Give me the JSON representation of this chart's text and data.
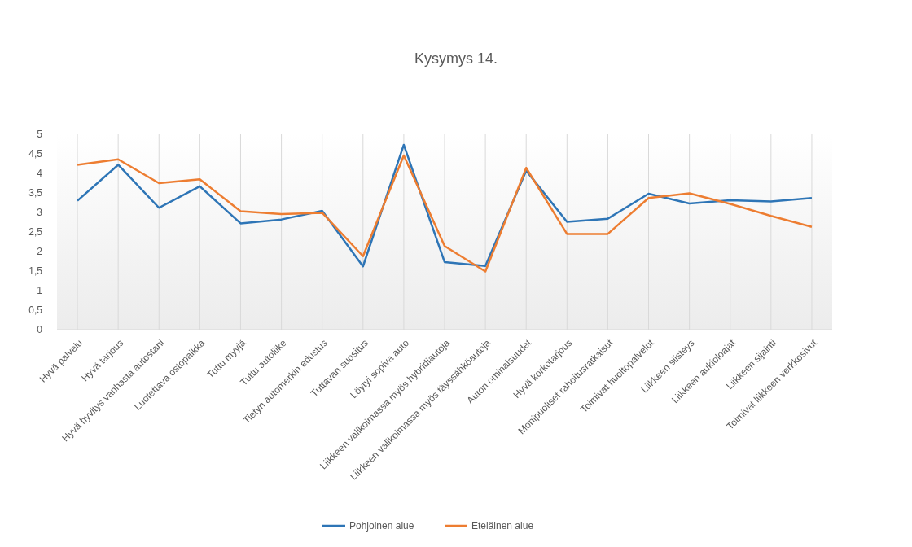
{
  "chart_data": {
    "type": "line",
    "title": "Kysymys 14.",
    "categories": [
      "Hyvä palvelu",
      "Hyvä tarjous",
      "Hyvä hyvitys vanhasta autostani",
      "Luotettava ostopaikka",
      "Tuttu myyjä",
      "Tuttu autoliike",
      "Tietyn automerkin edustus",
      "Tuttavan suositus",
      "Löytyi sopiva auto",
      "Liikkeen valikoimassa myös hybridiautoja",
      "Liikkeen valikoimassa myös täyssähköautoja",
      "Auton ominaisuudet",
      "Hyvä korkotarjous",
      "Monipuoliset rahoitusratkaisut",
      "Toimivat huoltopalvelut",
      "Liikkeen siisteys",
      "Liikkeen aukioloajat",
      "Liikkeen sijainti",
      "Toimivat liikkeen verkkosivut"
    ],
    "series": [
      {
        "name": "Pohjoinen alue",
        "color": "#2e75b6",
        "values": [
          3.3,
          4.22,
          3.12,
          3.67,
          2.72,
          2.82,
          3.04,
          1.62,
          4.73,
          1.73,
          1.63,
          4.07,
          2.76,
          2.84,
          3.48,
          3.23,
          3.31,
          3.28,
          3.37
        ]
      },
      {
        "name": "Eteläinen alue",
        "color": "#ed7d31",
        "values": [
          4.22,
          4.36,
          3.75,
          3.85,
          3.03,
          2.96,
          2.99,
          1.88,
          4.46,
          2.14,
          1.49,
          4.14,
          2.45,
          2.45,
          3.37,
          3.49,
          3.22,
          2.91,
          2.63
        ]
      }
    ],
    "ylim": [
      0,
      5
    ],
    "yticks": [
      0,
      {
        "value": 0.5,
        "label": "0,5"
      },
      1,
      {
        "value": 1.5,
        "label": "1,5"
      },
      2,
      {
        "value": 2.5,
        "label": "2,5"
      },
      3,
      {
        "value": 3.5,
        "label": "3,5"
      },
      4,
      {
        "value": 4.5,
        "label": "4,5"
      },
      5
    ],
    "grid": "x",
    "legend": "bottom",
    "marker": "none",
    "line_style": "solid"
  }
}
